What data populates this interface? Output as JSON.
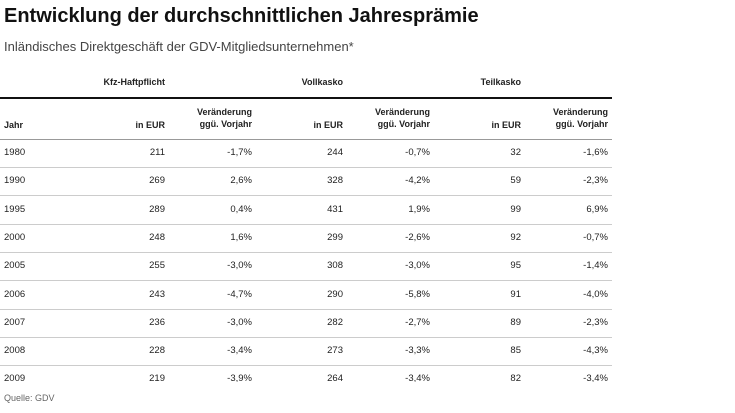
{
  "header": {
    "title": "Entwicklung der durchschnittlichen Jahresprämie",
    "subtitle": "Inländisches Direktgeschäft der GDV-Mitgliedsunternehmen*"
  },
  "table": {
    "groups": [
      "Kfz-Haftpflicht",
      "Vollkasko",
      "Teilkasko"
    ],
    "columns": [
      "Jahr",
      "in EUR",
      "Veränderung ggü. Vorjahr",
      "in EUR",
      "Veränderung ggü. Vorjahr",
      "in EUR",
      "Veränderung ggü. Vorjahr"
    ],
    "rows": [
      [
        "1980",
        "211",
        "-1,7%",
        "244",
        "-0,7%",
        "32",
        "-1,6%"
      ],
      [
        "1990",
        "269",
        "2,6%",
        "328",
        "-4,2%",
        "59",
        "-2,3%"
      ],
      [
        "1995",
        "289",
        "0,4%",
        "431",
        "1,9%",
        "99",
        "6,9%"
      ],
      [
        "2000",
        "248",
        "1,6%",
        "299",
        "-2,6%",
        "92",
        "-0,7%"
      ],
      [
        "2005",
        "255",
        "-3,0%",
        "308",
        "-3,0%",
        "95",
        "-1,4%"
      ],
      [
        "2006",
        "243",
        "-4,7%",
        "290",
        "-5,8%",
        "91",
        "-4,0%"
      ],
      [
        "2007",
        "236",
        "-3,0%",
        "282",
        "-2,7%",
        "89",
        "-2,3%"
      ],
      [
        "2008",
        "228",
        "-3,4%",
        "273",
        "-3,3%",
        "85",
        "-4,3%"
      ],
      [
        "2009",
        "219",
        "-3,9%",
        "264",
        "-3,4%",
        "82",
        "-3,4%"
      ]
    ]
  },
  "footer": {
    "source": "Quelle: GDV"
  }
}
